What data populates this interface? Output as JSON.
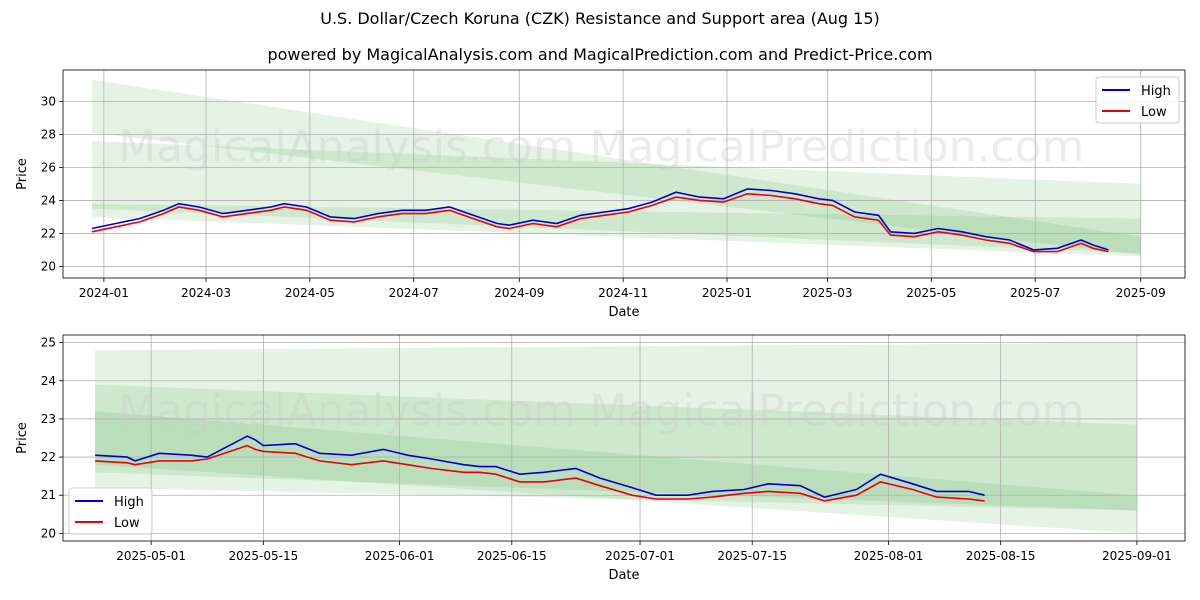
{
  "title": "U.S. Dollar/Czech Koruna (CZK) Resistance and Support area (Aug 15)",
  "subtitle": "powered by MagicalAnalysis.com and MagicalPrediction.com and Predict-Price.com",
  "watermarks": [
    "MagicalAnalysis.com",
    "MagicalPrediction.com"
  ],
  "colors": {
    "high": "#0000cc",
    "low": "#e8000b",
    "band": "#2ca02c",
    "grid": "#b0b0b0"
  },
  "chart_data": [
    {
      "type": "line",
      "xlabel": "Date",
      "ylabel": "Price",
      "x_ticks": [
        "2024-01",
        "2024-03",
        "2024-05",
        "2024-07",
        "2024-09",
        "2024-11",
        "2025-01",
        "2025-03",
        "2025-05",
        "2025-07",
        "2025-09"
      ],
      "y_ticks": [
        "20",
        "22",
        "24",
        "26",
        "28",
        "30"
      ],
      "xlim": [
        "2023-12-08",
        "2025-09-27"
      ],
      "ylim": [
        19.3,
        31.9
      ],
      "grid": true,
      "legend": "upper right",
      "series": [
        {
          "name": "High",
          "x": [
            "2023-12-25",
            "2024-01-08",
            "2024-01-22",
            "2024-02-05",
            "2024-02-14",
            "2024-02-26",
            "2024-03-11",
            "2024-03-25",
            "2024-04-08",
            "2024-04-16",
            "2024-04-29",
            "2024-05-13",
            "2024-05-27",
            "2024-06-10",
            "2024-06-24",
            "2024-07-08",
            "2024-07-22",
            "2024-08-05",
            "2024-08-19",
            "2024-08-26",
            "2024-09-09",
            "2024-09-23",
            "2024-10-07",
            "2024-10-21",
            "2024-11-04",
            "2024-11-18",
            "2024-12-02",
            "2024-12-16",
            "2024-12-30",
            "2025-01-13",
            "2025-01-27",
            "2025-02-10",
            "2025-02-24",
            "2025-03-04",
            "2025-03-17",
            "2025-03-31",
            "2025-04-07",
            "2025-04-21",
            "2025-05-05",
            "2025-05-19",
            "2025-06-02",
            "2025-06-16",
            "2025-06-30",
            "2025-07-14",
            "2025-07-28",
            "2025-08-04",
            "2025-08-13"
          ],
          "values": [
            22.3,
            22.6,
            22.9,
            23.4,
            23.8,
            23.6,
            23.2,
            23.4,
            23.6,
            23.8,
            23.6,
            23.0,
            22.9,
            23.2,
            23.4,
            23.4,
            23.6,
            23.1,
            22.6,
            22.5,
            22.8,
            22.6,
            23.1,
            23.3,
            23.5,
            23.9,
            24.5,
            24.2,
            24.1,
            24.7,
            24.6,
            24.4,
            24.1,
            24.0,
            23.3,
            23.1,
            22.1,
            22.0,
            22.3,
            22.1,
            21.8,
            21.6,
            21.0,
            21.1,
            21.6,
            21.3,
            21.0
          ]
        },
        {
          "name": "Low",
          "x": [
            "2023-12-25",
            "2024-01-08",
            "2024-01-22",
            "2024-02-05",
            "2024-02-14",
            "2024-02-26",
            "2024-03-11",
            "2024-03-25",
            "2024-04-08",
            "2024-04-16",
            "2024-04-29",
            "2024-05-13",
            "2024-05-27",
            "2024-06-10",
            "2024-06-24",
            "2024-07-08",
            "2024-07-22",
            "2024-08-05",
            "2024-08-19",
            "2024-08-26",
            "2024-09-09",
            "2024-09-23",
            "2024-10-07",
            "2024-10-21",
            "2024-11-04",
            "2024-11-18",
            "2024-12-02",
            "2024-12-16",
            "2024-12-30",
            "2025-01-13",
            "2025-01-27",
            "2025-02-10",
            "2025-02-24",
            "2025-03-04",
            "2025-03-17",
            "2025-03-31",
            "2025-04-07",
            "2025-04-21",
            "2025-05-05",
            "2025-05-19",
            "2025-06-02",
            "2025-06-16",
            "2025-06-30",
            "2025-07-14",
            "2025-07-28",
            "2025-08-04",
            "2025-08-13"
          ],
          "values": [
            22.1,
            22.4,
            22.7,
            23.2,
            23.6,
            23.4,
            23.0,
            23.2,
            23.4,
            23.6,
            23.4,
            22.8,
            22.7,
            23.0,
            23.2,
            23.2,
            23.4,
            22.9,
            22.4,
            22.3,
            22.6,
            22.4,
            22.9,
            23.1,
            23.3,
            23.7,
            24.2,
            24.0,
            23.9,
            24.4,
            24.3,
            24.1,
            23.8,
            23.7,
            23.0,
            22.8,
            21.9,
            21.8,
            22.1,
            21.9,
            21.6,
            21.4,
            20.9,
            20.9,
            21.4,
            21.1,
            20.9
          ]
        }
      ],
      "bands": [
        {
          "x": [
            "2023-12-25",
            "2025-09-01"
          ],
          "upper": [
            31.3,
            21.8
          ],
          "lower": [
            28.1,
            20.7
          ]
        },
        {
          "x": [
            "2023-12-25",
            "2025-09-01"
          ],
          "upper": [
            27.6,
            25.0
          ],
          "lower": [
            23.5,
            20.8
          ]
        },
        {
          "x": [
            "2023-12-25",
            "2025-09-01"
          ],
          "upper": [
            23.8,
            22.9
          ],
          "lower": [
            23.0,
            20.6
          ]
        }
      ]
    },
    {
      "type": "line",
      "xlabel": "Date",
      "ylabel": "Price",
      "x_ticks": [
        "2025-05-01",
        "2025-05-15",
        "2025-06-01",
        "2025-06-15",
        "2025-07-01",
        "2025-07-15",
        "2025-08-01",
        "2025-08-15",
        "2025-09-01"
      ],
      "y_ticks": [
        "20",
        "21",
        "22",
        "23",
        "24",
        "25"
      ],
      "xlim": [
        "2025-04-20",
        "2025-09-07"
      ],
      "ylim": [
        19.8,
        25.2
      ],
      "grid": true,
      "legend": "lower left",
      "series": [
        {
          "name": "High",
          "x": [
            "2025-04-24",
            "2025-04-28",
            "2025-04-29",
            "2025-05-02",
            "2025-05-06",
            "2025-05-08",
            "2025-05-13",
            "2025-05-14",
            "2025-05-15",
            "2025-05-19",
            "2025-05-22",
            "2025-05-26",
            "2025-05-30",
            "2025-06-02",
            "2025-06-05",
            "2025-06-09",
            "2025-06-11",
            "2025-06-13",
            "2025-06-16",
            "2025-06-19",
            "2025-06-23",
            "2025-06-26",
            "2025-06-30",
            "2025-07-03",
            "2025-07-07",
            "2025-07-10",
            "2025-07-14",
            "2025-07-17",
            "2025-07-21",
            "2025-07-24",
            "2025-07-28",
            "2025-07-31",
            "2025-08-04",
            "2025-08-07",
            "2025-08-11",
            "2025-08-13"
          ],
          "values": [
            22.05,
            22.0,
            21.9,
            22.1,
            22.05,
            22.0,
            22.55,
            22.45,
            22.3,
            22.35,
            22.1,
            22.05,
            22.2,
            22.05,
            21.95,
            21.8,
            21.75,
            21.75,
            21.55,
            21.6,
            21.7,
            21.45,
            21.2,
            21.0,
            21.0,
            21.1,
            21.15,
            21.3,
            21.25,
            20.95,
            21.15,
            21.55,
            21.3,
            21.1,
            21.1,
            21.0
          ]
        },
        {
          "name": "Low",
          "x": [
            "2025-04-24",
            "2025-04-28",
            "2025-04-29",
            "2025-05-02",
            "2025-05-06",
            "2025-05-08",
            "2025-05-13",
            "2025-05-14",
            "2025-05-15",
            "2025-05-19",
            "2025-05-22",
            "2025-05-26",
            "2025-05-30",
            "2025-06-02",
            "2025-06-05",
            "2025-06-09",
            "2025-06-11",
            "2025-06-13",
            "2025-06-16",
            "2025-06-19",
            "2025-06-23",
            "2025-06-26",
            "2025-06-30",
            "2025-07-03",
            "2025-07-07",
            "2025-07-10",
            "2025-07-14",
            "2025-07-17",
            "2025-07-21",
            "2025-07-24",
            "2025-07-28",
            "2025-07-31",
            "2025-08-04",
            "2025-08-07",
            "2025-08-11",
            "2025-08-13"
          ],
          "values": [
            21.9,
            21.85,
            21.8,
            21.9,
            21.9,
            21.95,
            22.3,
            22.2,
            22.15,
            22.1,
            21.9,
            21.8,
            21.9,
            21.8,
            21.7,
            21.6,
            21.6,
            21.55,
            21.35,
            21.35,
            21.45,
            21.25,
            21.0,
            20.9,
            20.9,
            20.95,
            21.05,
            21.1,
            21.05,
            20.85,
            21.0,
            21.35,
            21.15,
            20.95,
            20.9,
            20.85
          ]
        }
      ],
      "bands": [
        {
          "x": [
            "2025-04-24",
            "2025-09-01"
          ],
          "upper": [
            24.8,
            25.0
          ],
          "lower": [
            21.8,
            20.0
          ]
        },
        {
          "x": [
            "2025-04-24",
            "2025-09-01"
          ],
          "upper": [
            23.9,
            22.85
          ],
          "lower": [
            21.2,
            20.6
          ]
        },
        {
          "x": [
            "2025-04-24",
            "2025-09-01"
          ],
          "upper": [
            23.2,
            21.0
          ],
          "lower": [
            21.6,
            20.6
          ]
        }
      ]
    }
  ]
}
